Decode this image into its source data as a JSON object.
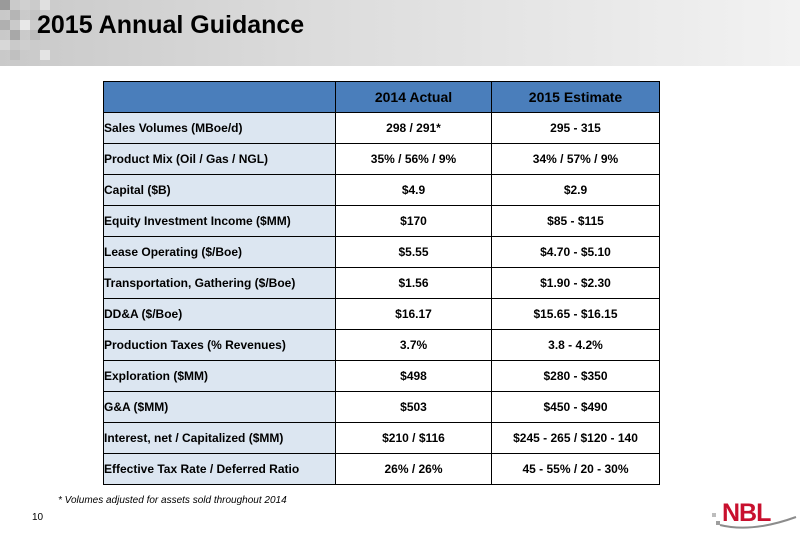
{
  "slide": {
    "title": "2015 Annual Guidance",
    "page_number": "10",
    "footnote": "* Volumes adjusted for assets sold throughout 2014",
    "logo_text": "NBL",
    "colors": {
      "header_fill": "#4a7ebb",
      "label_fill": "#dce6f1",
      "logo_red": "#c8102e"
    }
  },
  "table": {
    "columns": [
      "",
      "2014 Actual",
      "2015 Estimate"
    ],
    "rows": [
      {
        "label": "Sales Volumes (MBoe/d)",
        "actual_2014": "298 / 291*",
        "estimate_2015": "295 - 315"
      },
      {
        "label": "Product Mix (Oil / Gas / NGL)",
        "actual_2014": "35% / 56% / 9%",
        "estimate_2015": "34% / 57% / 9%"
      },
      {
        "label": "Capital ($B)",
        "actual_2014": "$4.9",
        "estimate_2015": "$2.9"
      },
      {
        "label": "Equity Investment Income ($MM)",
        "actual_2014": "$170",
        "estimate_2015": "$85 - $115"
      },
      {
        "label": "Lease Operating ($/Boe)",
        "actual_2014": "$5.55",
        "estimate_2015": "$4.70 - $5.10"
      },
      {
        "label": "Transportation, Gathering ($/Boe)",
        "actual_2014": "$1.56",
        "estimate_2015": "$1.90 - $2.30"
      },
      {
        "label": "DD&A ($/Boe)",
        "actual_2014": "$16.17",
        "estimate_2015": "$15.65 - $16.15"
      },
      {
        "label": "Production Taxes (% Revenues)",
        "actual_2014": "3.7%",
        "estimate_2015": "3.8 - 4.2%"
      },
      {
        "label": "Exploration ($MM)",
        "actual_2014": "$498",
        "estimate_2015": "$280 - $350"
      },
      {
        "label": "G&A ($MM)",
        "actual_2014": "$503",
        "estimate_2015": "$450 - $490"
      },
      {
        "label": "Interest, net / Capitalized ($MM)",
        "actual_2014": "$210 / $116",
        "estimate_2015": "$245 - 265 / $120 - 140"
      },
      {
        "label": "Effective Tax Rate / Deferred Ratio",
        "actual_2014": "26% / 26%",
        "estimate_2015": "45 - 55% / 20 - 30%"
      }
    ]
  }
}
